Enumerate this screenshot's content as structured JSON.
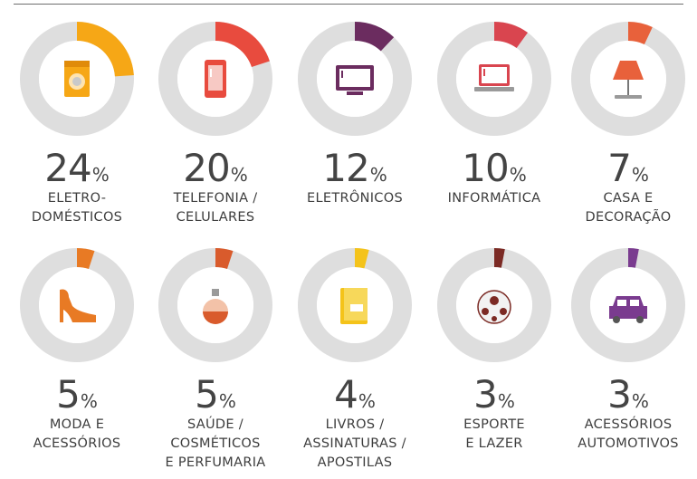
{
  "chart_data": {
    "type": "pie",
    "categories": [
      "ELETRO-\nDOMÉSTICOS",
      "TELEFONIA /\nCELULARES",
      "ELETRÔNICOS",
      "INFORMÁTICA",
      "CASA E\nDECORAÇÃO",
      "MODA E\nACESSÓRIOS",
      "SAÚDE /\nCOSMÉTICOS\nE PERFUMARIA",
      "LIVROS /\nASSINATURAS /\nAPOSTILAS",
      "ESPORTE\nE LAZER",
      "ACESSÓRIOS\nAUTOMOTIVOS"
    ],
    "values": [
      24,
      20,
      12,
      10,
      7,
      5,
      5,
      4,
      3,
      3
    ],
    "value_labels": [
      "24",
      "20",
      "12",
      "10",
      "7",
      "5",
      "5",
      "4",
      "3",
      "3"
    ],
    "unit": "%",
    "colors": [
      "#f6a716",
      "#e84b3e",
      "#6b2c5f",
      "#d9454f",
      "#e8613b",
      "#e87a24",
      "#d95b2c",
      "#f4c31a",
      "#7b2a24",
      "#7a3b8f"
    ],
    "icons": [
      "washing-machine-icon",
      "smartphone-icon",
      "tv-icon",
      "laptop-icon",
      "lamp-icon",
      "high-heel-icon",
      "perfume-icon",
      "book-icon",
      "soccer-ball-icon",
      "car-icon"
    ],
    "ring_color": "#dedede"
  }
}
